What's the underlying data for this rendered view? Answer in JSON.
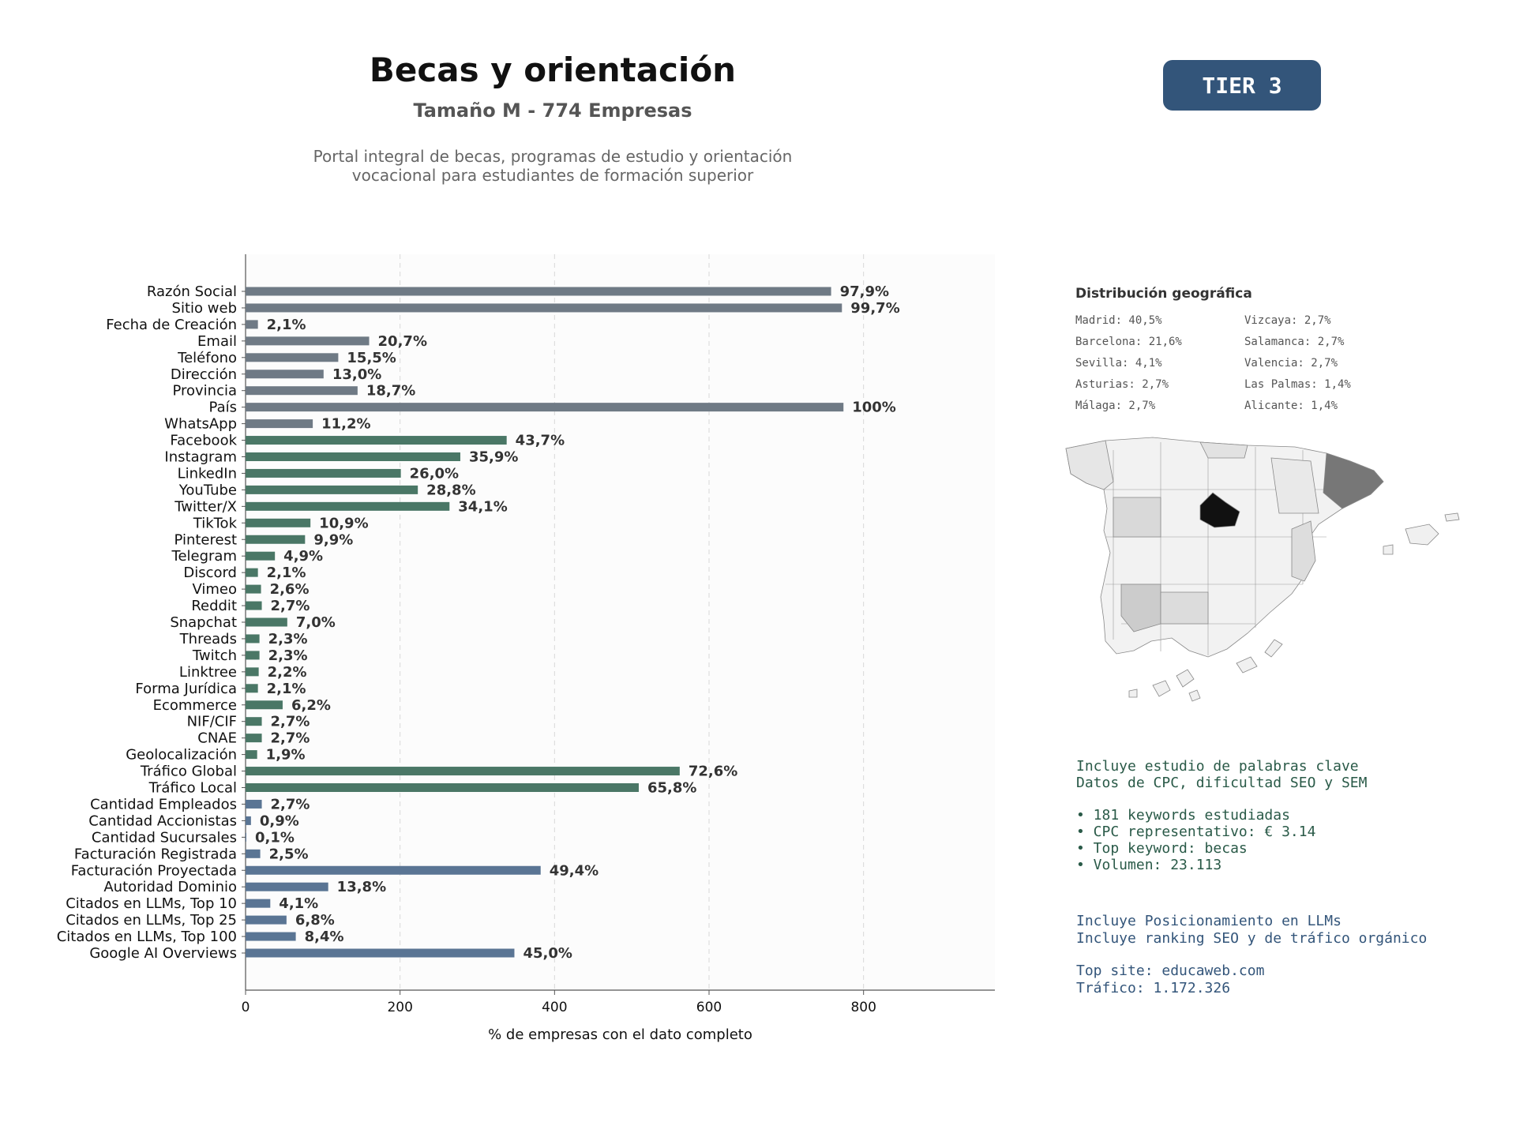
{
  "header": {
    "title": "Becas y orientación",
    "subtitle": "Tamaño M - 774 Empresas",
    "description_line1": "Portal integral de becas, programas de estudio y orientación",
    "description_line2": "vocacional para estudiantes de formación superior",
    "tier": "TIER 3"
  },
  "colors": {
    "contact": "#6f7a85",
    "social": "#4a7766",
    "financial": "#5a7594",
    "madrid": "#111111",
    "barcelona": "#777777"
  },
  "chart_data": {
    "type": "bar",
    "orientation": "horizontal",
    "xlabel": "% de empresas con el dato completo",
    "xticks": [
      0,
      200,
      400,
      600,
      800
    ],
    "xlim": [
      0,
      970
    ],
    "grid": "vertical dashed",
    "categories": [
      "Razón Social",
      "Sitio web",
      "Fecha de Creación",
      "Email",
      "Teléfono",
      "Dirección",
      "Provincia",
      "País",
      "WhatsApp",
      "Facebook",
      "Instagram",
      "LinkedIn",
      "YouTube",
      "Twitter/X",
      "TikTok",
      "Pinterest",
      "Telegram",
      "Discord",
      "Vimeo",
      "Reddit",
      "Snapchat",
      "Threads",
      "Twitch",
      "Linktree",
      "Forma Jurídica",
      "Ecommerce",
      "NIF/CIF",
      "CNAE",
      "Geolocalización",
      "Tráfico Global",
      "Tráfico Local",
      "Cantidad Empleados",
      "Cantidad Accionistas",
      "Cantidad Sucursales",
      "Facturación Registrada",
      "Facturación Proyectada",
      "Autoridad Dominio",
      "Citados en LLMs, Top 10",
      "Citados en LLMs, Top 25",
      "Citados en LLMs, Top 100",
      "Google AI Overviews"
    ],
    "values": [
      758,
      772,
      16,
      160,
      120,
      101,
      145,
      774,
      87,
      338,
      278,
      201,
      223,
      264,
      84,
      77,
      38,
      16,
      20,
      21,
      54,
      18,
      18,
      17,
      16,
      48,
      21,
      21,
      15,
      562,
      509,
      21,
      7,
      1,
      19,
      382,
      107,
      32,
      53,
      65,
      348
    ],
    "labels": [
      "97,9%",
      "99,7%",
      "2,1%",
      "20,7%",
      "15,5%",
      "13,0%",
      "18,7%",
      "100%",
      "11,2%",
      "43,7%",
      "35,9%",
      "26,0%",
      "28,8%",
      "34,1%",
      "10,9%",
      "9,9%",
      "4,9%",
      "2,1%",
      "2,6%",
      "2,7%",
      "7,0%",
      "2,3%",
      "2,3%",
      "2,2%",
      "2,1%",
      "6,2%",
      "2,7%",
      "2,7%",
      "1,9%",
      "72,6%",
      "65,8%",
      "2,7%",
      "0,9%",
      "0,1%",
      "2,5%",
      "49,4%",
      "13,8%",
      "4,1%",
      "6,8%",
      "8,4%",
      "45,0%"
    ],
    "groups": [
      "contact",
      "contact",
      "contact",
      "contact",
      "contact",
      "contact",
      "contact",
      "contact",
      "contact",
      "social",
      "social",
      "social",
      "social",
      "social",
      "social",
      "social",
      "social",
      "social",
      "social",
      "social",
      "social",
      "social",
      "social",
      "social",
      "social",
      "social",
      "social",
      "social",
      "social",
      "social",
      "social",
      "financial",
      "financial",
      "financial",
      "financial",
      "financial",
      "financial",
      "financial",
      "financial",
      "financial",
      "financial"
    ]
  },
  "geo": {
    "title": "Distribución geográfica",
    "left": [
      "Madrid: 40,5%",
      "Barcelona: 21,6%",
      "Sevilla: 4,1%",
      "Asturias: 2,7%",
      "Málaga: 2,7%"
    ],
    "right": [
      "Vizcaya: 2,7%",
      "Salamanca: 2,7%",
      "Valencia: 2,7%",
      "Las Palmas: 1,4%",
      "Alicante: 1,4%"
    ]
  },
  "keywords": {
    "line1": "Incluye estudio de palabras clave",
    "line2": "Datos de CPC, dificultad SEO y SEM",
    "bullets": [
      "• 181 keywords estudiadas",
      "• CPC representativo: € 3.14",
      "• Top keyword: becas",
      "• Volumen: 23.113"
    ]
  },
  "llm": {
    "line1": "Incluye Posicionamiento en LLMs",
    "line2": "Incluye ranking SEO y de tráfico orgánico",
    "top_site": "Top site: educaweb.com",
    "traffic": "Tráfico: 1.172.326"
  }
}
